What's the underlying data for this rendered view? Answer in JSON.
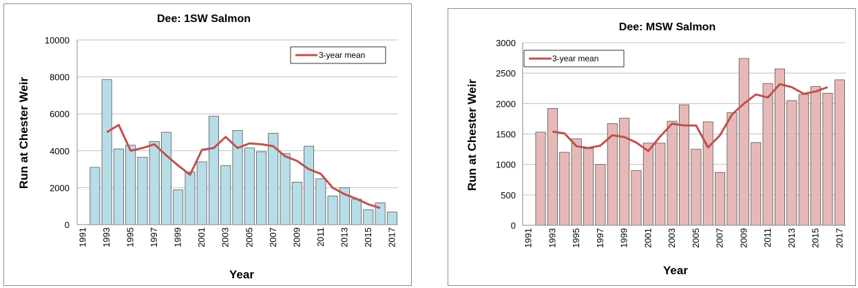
{
  "colors": {
    "left_bar": "#b7dde8",
    "right_bar": "#e6b9b8",
    "line": "#c0504d",
    "bar_stroke": "#555555",
    "grid": "#bfbfbf"
  },
  "chart_data": [
    {
      "type": "bar",
      "title": "Dee: 1SW Salmon",
      "xlabel": "Year",
      "ylabel": "Run at Chester Weir",
      "ylim": [
        0,
        10000
      ],
      "yticks": [
        0,
        2000,
        4000,
        6000,
        8000,
        10000
      ],
      "x_tick_labels": [
        "1991",
        "1993",
        "1995",
        "1997",
        "1999",
        "2001",
        "2003",
        "2005",
        "2007",
        "2009",
        "2011",
        "2013",
        "2015",
        "2017"
      ],
      "categories": [
        1992,
        1993,
        1994,
        1995,
        1996,
        1997,
        1998,
        1999,
        2000,
        2001,
        2002,
        2003,
        2004,
        2005,
        2006,
        2007,
        2008,
        2009,
        2010,
        2011,
        2012,
        2013,
        2014,
        2015,
        2016,
        2017
      ],
      "series": [
        {
          "values": [
            3100,
            7850,
            4100,
            4300,
            3650,
            4500,
            5000,
            1880,
            2850,
            3400,
            5870,
            3200,
            5100,
            4150,
            3950,
            4950,
            3850,
            2300,
            4250,
            2480,
            1550,
            2000,
            1380,
            800,
            1180,
            680
          ]
        },
        {
          "name": "3-year mean",
          "type": "line",
          "x": [
            1993,
            1994,
            1995,
            1996,
            1997,
            1998,
            1999,
            2000,
            2001,
            2002,
            2003,
            2004,
            2005,
            2006,
            2007,
            2008,
            2009,
            2010,
            2011,
            2012,
            2013,
            2014,
            2015,
            2016
          ],
          "values": [
            5000,
            5400,
            4000,
            4150,
            4350,
            3750,
            3200,
            2700,
            4050,
            4150,
            4750,
            4150,
            4400,
            4350,
            4250,
            3700,
            3450,
            3000,
            2750,
            2000,
            1650,
            1400,
            1100,
            900
          ]
        }
      ],
      "grid": true,
      "legend": "top-right"
    },
    {
      "type": "bar",
      "title": "Dee: MSW Salmon",
      "xlabel": "Year",
      "ylabel": "Run at Chester Weir",
      "ylim": [
        0,
        3000
      ],
      "yticks": [
        0,
        500,
        1000,
        1500,
        2000,
        2500,
        3000
      ],
      "x_tick_labels": [
        "1991",
        "1993",
        "1995",
        "1997",
        "1999",
        "2001",
        "2003",
        "2005",
        "2007",
        "2009",
        "2011",
        "2013",
        "2015",
        "2017"
      ],
      "categories": [
        1992,
        1993,
        1994,
        1995,
        1996,
        1997,
        1998,
        1999,
        2000,
        2001,
        2002,
        2003,
        2004,
        2005,
        2006,
        2007,
        2008,
        2009,
        2010,
        2011,
        2012,
        2013,
        2014,
        2015,
        2016,
        2017
      ],
      "series": [
        {
          "values": [
            1530,
            1920,
            1200,
            1420,
            1260,
            1000,
            1670,
            1760,
            900,
            1350,
            1350,
            1710,
            1980,
            1250,
            1700,
            870,
            1850,
            2740,
            1360,
            2330,
            2570,
            2050,
            2150,
            2280,
            2170,
            2390
          ]
        },
        {
          "name": "3-year mean",
          "type": "line",
          "x": [
            1993,
            1994,
            1995,
            1996,
            1997,
            1998,
            1999,
            2000,
            2001,
            2002,
            2003,
            2004,
            2005,
            2006,
            2007,
            2008,
            2009,
            2010,
            2011,
            2012,
            2013,
            2014,
            2015,
            2016
          ],
          "values": [
            1540,
            1510,
            1300,
            1270,
            1310,
            1480,
            1450,
            1360,
            1220,
            1460,
            1670,
            1640,
            1640,
            1280,
            1480,
            1820,
            2000,
            2150,
            2100,
            2320,
            2270,
            2160,
            2200,
            2270
          ]
        }
      ],
      "grid": true,
      "legend": "top-left"
    }
  ]
}
